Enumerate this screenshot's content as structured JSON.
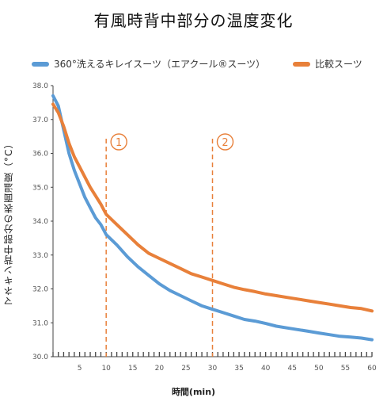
{
  "chart_data": {
    "type": "line",
    "title": "有風時背中部分の温度変化",
    "xlabel": "時間(min)",
    "ylabel": "マネキン背中部分の表面温度（°C）",
    "xlim": [
      0,
      60
    ],
    "ylim": [
      30.0,
      38.0
    ],
    "x_ticks": [
      5,
      10,
      15,
      20,
      25,
      30,
      35,
      40,
      45,
      50,
      55,
      60
    ],
    "y_ticks": [
      "30.0",
      "31.0",
      "32.0",
      "33.0",
      "34.0",
      "35.0",
      "36.0",
      "37.0",
      "38.0"
    ],
    "legend_position": "top",
    "series": [
      {
        "name": "360°洗えるキレイスーツ（エアクール®スーツ）",
        "color": "#5b9bd5",
        "x": [
          0,
          1,
          2,
          3,
          4,
          5,
          6,
          7,
          8,
          9,
          10,
          12,
          14,
          16,
          18,
          20,
          22,
          24,
          26,
          28,
          30,
          32,
          34,
          36,
          38,
          40,
          42,
          44,
          46,
          48,
          50,
          52,
          54,
          56,
          58,
          60
        ],
        "values": [
          37.7,
          37.4,
          36.7,
          36.0,
          35.5,
          35.1,
          34.7,
          34.4,
          34.1,
          33.9,
          33.6,
          33.3,
          32.95,
          32.65,
          32.4,
          32.15,
          31.95,
          31.8,
          31.65,
          31.5,
          31.4,
          31.3,
          31.2,
          31.1,
          31.05,
          30.98,
          30.9,
          30.85,
          30.8,
          30.75,
          30.7,
          30.65,
          30.6,
          30.58,
          30.55,
          30.5
        ]
      },
      {
        "name": "比較スーツ",
        "color": "#e8803a",
        "x": [
          0,
          1,
          2,
          3,
          4,
          5,
          6,
          7,
          8,
          9,
          10,
          12,
          14,
          16,
          18,
          20,
          22,
          24,
          26,
          28,
          30,
          32,
          34,
          36,
          38,
          40,
          42,
          44,
          46,
          48,
          50,
          52,
          54,
          56,
          58,
          60
        ],
        "values": [
          37.45,
          37.2,
          36.8,
          36.3,
          35.9,
          35.6,
          35.3,
          35.0,
          34.75,
          34.5,
          34.2,
          33.9,
          33.6,
          33.3,
          33.05,
          32.9,
          32.75,
          32.6,
          32.45,
          32.35,
          32.25,
          32.15,
          32.05,
          31.98,
          31.92,
          31.85,
          31.8,
          31.75,
          31.7,
          31.65,
          31.6,
          31.55,
          31.5,
          31.45,
          31.42,
          31.35
        ]
      }
    ],
    "markers": [
      {
        "x": 10,
        "label": "1"
      },
      {
        "x": 30,
        "label": "2"
      }
    ],
    "marker_color": "#e8803a"
  }
}
